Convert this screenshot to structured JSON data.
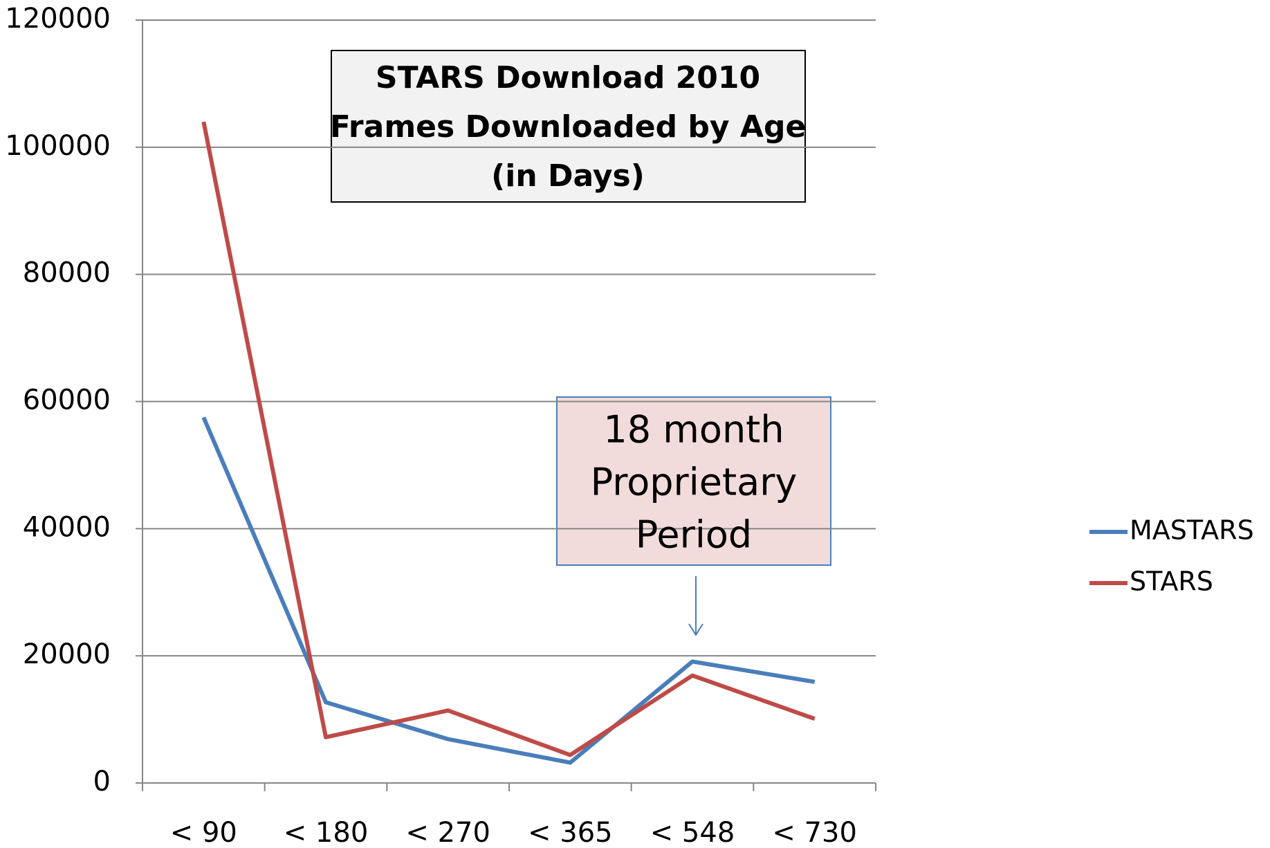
{
  "chart_data": {
    "type": "line",
    "title": [
      "STARS Download 2010",
      "Frames Downloaded by Age",
      "(in Days)"
    ],
    "annotation": [
      "18 month",
      "Proprietary",
      "Period"
    ],
    "categories": [
      "< 90",
      "< 180",
      "< 270",
      "< 365",
      "< 548",
      "< 730"
    ],
    "series": [
      {
        "name": "MASTARS",
        "color": "#4a7ebb",
        "values": [
          57500,
          12700,
          6900,
          3200,
          19100,
          15900
        ]
      },
      {
        "name": "STARS",
        "color": "#be4b48",
        "values": [
          104000,
          7200,
          11400,
          4400,
          16900,
          10100
        ]
      }
    ],
    "ylim": [
      0,
      120000
    ],
    "yticks": [
      0,
      20000,
      40000,
      60000,
      80000,
      100000,
      120000
    ],
    "grid": true,
    "legend": "right"
  }
}
